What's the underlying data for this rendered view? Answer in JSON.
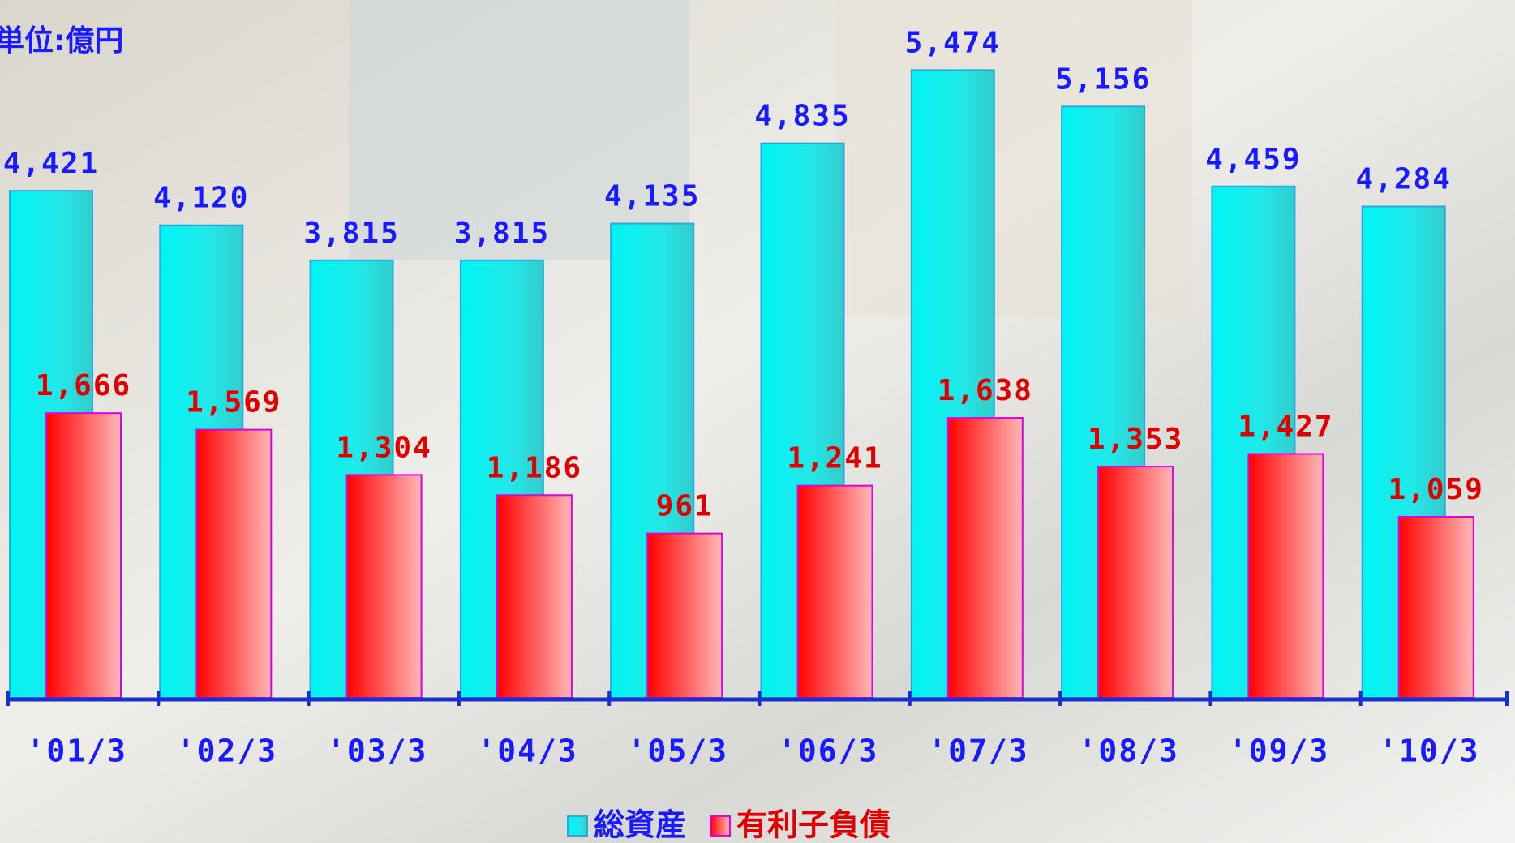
{
  "chart_data": {
    "type": "bar",
    "unit_label": "単位:億円",
    "categories": [
      "'01/3",
      "'02/3",
      "'03/3",
      "'04/3",
      "'05/3",
      "'06/3",
      "'07/3",
      "'08/3",
      "'09/3",
      "'10/3"
    ],
    "series": [
      {
        "name": "総資産",
        "color": "#00e8e8",
        "label_color": "#1a1aff",
        "values": [
          4421,
          4120,
          3815,
          3815,
          4135,
          4835,
          5474,
          5156,
          4459,
          4284
        ],
        "value_labels": [
          "4,421",
          "4,120",
          "3,815",
          "3,815",
          "4,135",
          "4,835",
          "5,474",
          "5,156",
          "4,459",
          "4,284"
        ]
      },
      {
        "name": "有利子負債",
        "color": "#ff2020",
        "label_color": "#e00000",
        "axis": "y2",
        "values": [
          1666,
          1569,
          1304,
          1186,
          961,
          1241,
          1638,
          1353,
          1427,
          1059
        ],
        "value_labels": [
          "1,666",
          "1,569",
          "1,304",
          "1,186",
          "961",
          "1,241",
          "1,638",
          "1,353",
          "1,427",
          "1,059"
        ]
      }
    ],
    "ylim": [
      0,
      6000
    ],
    "y2lim": [
      0,
      4027
    ]
  }
}
